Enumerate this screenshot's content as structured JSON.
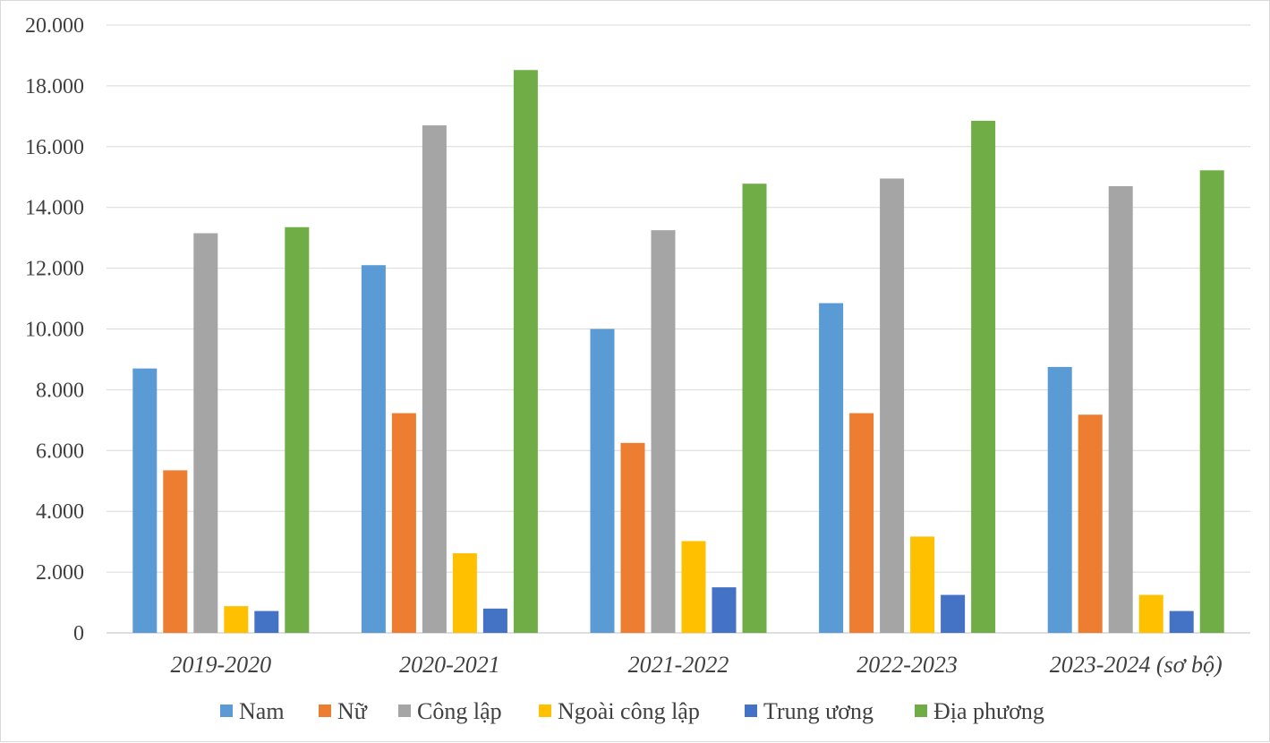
{
  "chart_data": {
    "type": "bar",
    "title": "",
    "xlabel": "",
    "ylabel": "",
    "ylim": [
      0,
      20000
    ],
    "yticks": [
      "0",
      "2.000",
      "4.000",
      "6.000",
      "8.000",
      "10.000",
      "12.000",
      "14.000",
      "16.000",
      "18.000",
      "20.000"
    ],
    "categories": [
      "2019-2020",
      "2020-2021",
      "2021-2022",
      "2022-2023",
      "2023-2024 (sơ bộ)"
    ],
    "series": [
      {
        "name": "Nam",
        "color": "#5b9bd5",
        "values": [
          8700,
          12100,
          10000,
          10850,
          8750
        ]
      },
      {
        "name": "Nữ",
        "color": "#ed7d31",
        "values": [
          5350,
          7230,
          6250,
          7230,
          7180
        ]
      },
      {
        "name": "Công lập",
        "color": "#a5a5a5",
        "values": [
          13150,
          16700,
          13250,
          14950,
          14700
        ]
      },
      {
        "name": "Ngoài công lập",
        "color": "#ffc000",
        "values": [
          880,
          2620,
          3020,
          3170,
          1250
        ]
      },
      {
        "name": "Trung ương",
        "color": "#4472c4",
        "values": [
          720,
          800,
          1500,
          1250,
          720
        ]
      },
      {
        "name": "Địa phương",
        "color": "#70ad47",
        "values": [
          13350,
          18520,
          14780,
          16850,
          15220
        ]
      }
    ],
    "grid": true,
    "legend": "bottom"
  }
}
